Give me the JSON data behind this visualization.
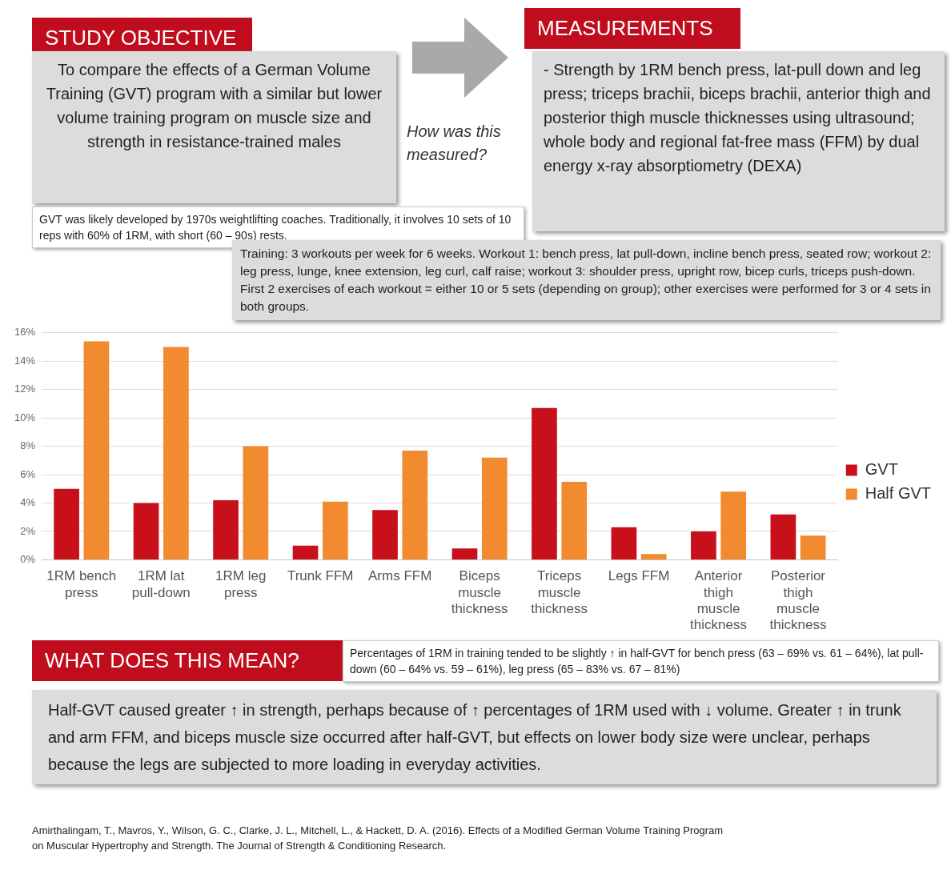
{
  "chart_data": {
    "type": "bar",
    "categories": [
      "1RM bench press",
      "1RM lat pull-down",
      "1RM leg press",
      "Trunk FFM",
      "Arms FFM",
      "Biceps muscle thickness",
      "Triceps muscle thickness",
      "Legs FFM",
      "Anterior thigh muscle thickness",
      "Posterior thigh muscle thickness"
    ],
    "series": [
      {
        "name": "GVT",
        "color": "#c8101a",
        "values": [
          5.0,
          4.0,
          4.2,
          1.0,
          3.5,
          0.8,
          10.7,
          2.3,
          2.0,
          3.2
        ]
      },
      {
        "name": "Half GVT",
        "color": "#f28a30",
        "values": [
          15.4,
          15.0,
          8.0,
          4.1,
          7.7,
          7.2,
          5.5,
          0.4,
          4.8,
          1.7
        ]
      }
    ],
    "ylim": [
      0,
      16
    ],
    "yticks": [
      {
        "value": 0,
        "label": "0%"
      },
      {
        "value": 2,
        "label": "2%"
      },
      {
        "value": 4,
        "label": "4%"
      },
      {
        "value": 6,
        "label": "6%"
      },
      {
        "value": 8,
        "label": "8%"
      },
      {
        "value": 10,
        "label": "10%"
      },
      {
        "value": 12,
        "label": "12%"
      },
      {
        "value": 14,
        "label": "14%"
      },
      {
        "value": 16,
        "label": "16%"
      }
    ],
    "grid": "y",
    "legend": "right",
    "annotations": [
      "STUDY OBJECTIVE",
      "To compare the effects of a German Volume Training (GVT) program with a similar but lower volume training program on muscle size and strength in resistance-trained males",
      "How was this measured?",
      "MEASUREMENTS",
      "- Strength by 1RM bench press, lat-pull down and leg press; triceps brachii, biceps brachii, anterior thigh and posterior thigh muscle thicknesses using ultrasound; whole body and regional fat-free mass (FFM) by dual energy x-ray absorptiometry (DEXA)",
      "GVT was likely developed by 1970s weightlifting coaches. Traditionally, it involves 10 sets of 10 reps with 60% of 1RM, with short (60 – 90s) rests.",
      "Training: 3 workouts per week for 6 weeks. Workout 1: bench press, lat pull-down, incline bench press, seated row; workout 2: leg press, lunge, knee extension, leg curl, calf raise; workout 3: shoulder press, upright row, bicep curls, triceps push-down. First 2 exercises of each workout = either 10 or 5 sets (depending on group); other exercises were performed for 3 or 4 sets in both groups.",
      "WHAT DOES THIS MEAN?",
      "Percentages of 1RM in training tended to be slightly ↑ in half-GVT for bench press (63 – 69% vs. 61 – 64%), lat pull-down (60 – 64% vs. 59 – 61%), leg press (65 – 83% vs. 67 – 81%)",
      "Half-GVT caused greater ↑ in strength, perhaps because of ↑ percentages of 1RM used with ↓ volume. Greater ↑ in trunk and arm FFM, and biceps muscle size occurred after half-GVT, but effects on lower body size were unclear, perhaps because the legs are subjected to more loading in everyday activities.",
      "Amirthalingam, T., Mavros, Y., Wilson, G. C., Clarke, J. L., Mitchell, L., & Hackett, D. A. (2016). Effects of a Modified German Volume Training Program on Muscular Hypertrophy and Strength. The Journal of Strength & Conditioning Research."
    ]
  }
}
